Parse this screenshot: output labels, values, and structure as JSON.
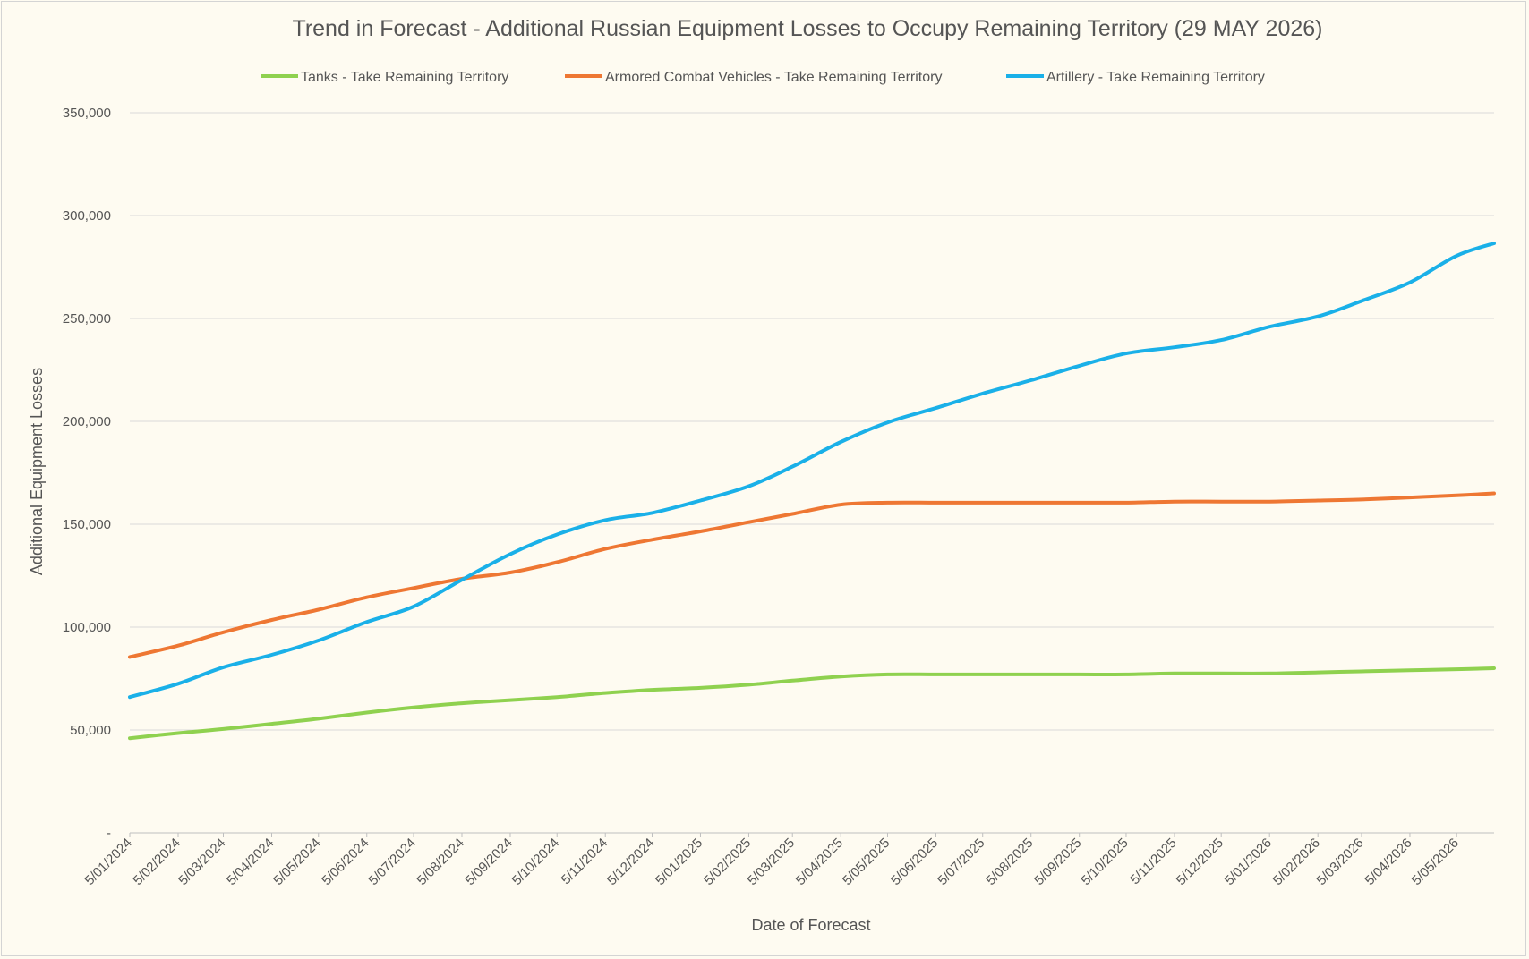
{
  "chart_data": {
    "type": "line",
    "title": "Trend in Forecast - Additional Russian Equipment Losses to Occupy Remaining Territory (29 MAY 2026)",
    "xlabel": "Date of Forecast",
    "ylabel": "Additional Equipment Losses",
    "ylim": [
      0,
      350000
    ],
    "yticks": [
      0,
      50000,
      100000,
      150000,
      200000,
      250000,
      300000,
      350000
    ],
    "ytick_labels": [
      "-",
      "50,000",
      "100,000",
      "150,000",
      "200,000",
      "250,000",
      "300,000",
      "350,000"
    ],
    "x_tick_labels": [
      "5/01/2024",
      "5/02/2024",
      "5/03/2024",
      "5/04/2024",
      "5/05/2024",
      "5/06/2024",
      "5/07/2024",
      "5/08/2024",
      "5/09/2024",
      "5/10/2024",
      "5/11/2024",
      "5/12/2024",
      "5/01/2025",
      "5/02/2025",
      "5/03/2025",
      "5/04/2025",
      "5/05/2025",
      "5/06/2025",
      "5/07/2025",
      "5/08/2025",
      "5/09/2025",
      "5/10/2025",
      "5/11/2025",
      "5/12/2025",
      "5/01/2026",
      "5/02/2026",
      "5/03/2026",
      "5/04/2026",
      "5/05/2026"
    ],
    "x_end": "29/05/2026",
    "grid": true,
    "legend_position": "top",
    "series": [
      {
        "name": "Tanks - Take Remaining Territory",
        "color": "#8fd14f",
        "x": [
          "5/01/2024",
          "5/02/2024",
          "5/03/2024",
          "5/04/2024",
          "5/05/2024",
          "5/06/2024",
          "5/07/2024",
          "5/08/2024",
          "5/09/2024",
          "5/10/2024",
          "5/11/2024",
          "5/12/2024",
          "5/01/2025",
          "5/02/2025",
          "5/03/2025",
          "5/04/2025",
          "5/05/2025",
          "5/06/2025",
          "5/07/2025",
          "5/08/2025",
          "5/09/2025",
          "5/10/2025",
          "5/11/2025",
          "5/12/2025",
          "5/01/2026",
          "5/02/2026",
          "5/03/2026",
          "5/04/2026",
          "5/05/2026",
          "29/05/2026"
        ],
        "values": [
          46000,
          48500,
          50500,
          53000,
          55500,
          58500,
          61000,
          63000,
          64500,
          66000,
          68000,
          69500,
          70500,
          72000,
          74000,
          76000,
          77000,
          77000,
          77000,
          77000,
          77000,
          77000,
          77500,
          77500,
          77500,
          78000,
          78500,
          79000,
          79500,
          80000
        ]
      },
      {
        "name": "Armored Combat Vehicles - Take Remaining Territory",
        "color": "#ee7733",
        "x": [
          "5/01/2024",
          "5/02/2024",
          "5/03/2024",
          "5/04/2024",
          "5/05/2024",
          "5/06/2024",
          "5/07/2024",
          "5/08/2024",
          "5/09/2024",
          "5/10/2024",
          "5/11/2024",
          "5/12/2024",
          "5/01/2025",
          "5/02/2025",
          "5/03/2025",
          "5/04/2025",
          "5/05/2025",
          "5/06/2025",
          "5/07/2025",
          "5/08/2025",
          "5/09/2025",
          "5/10/2025",
          "5/11/2025",
          "5/12/2025",
          "5/01/2026",
          "5/02/2026",
          "5/03/2026",
          "5/04/2026",
          "5/05/2026",
          "29/05/2026"
        ],
        "values": [
          85500,
          91000,
          97500,
          103500,
          108500,
          114500,
          119000,
          123500,
          126500,
          131500,
          138000,
          142500,
          146500,
          151000,
          155000,
          159500,
          160500,
          160500,
          160500,
          160500,
          160500,
          160500,
          161000,
          161000,
          161000,
          161500,
          162000,
          163000,
          164000,
          165000
        ]
      },
      {
        "name": "Artillery - Take Remaining Territory",
        "color": "#1ab0e8",
        "x": [
          "5/01/2024",
          "5/02/2024",
          "5/03/2024",
          "5/04/2024",
          "5/05/2024",
          "5/06/2024",
          "5/07/2024",
          "5/08/2024",
          "5/09/2024",
          "5/10/2024",
          "5/11/2024",
          "5/12/2024",
          "5/01/2025",
          "5/02/2025",
          "5/03/2025",
          "5/04/2025",
          "5/05/2025",
          "5/06/2025",
          "5/07/2025",
          "5/08/2025",
          "5/09/2025",
          "5/10/2025",
          "5/11/2025",
          "5/12/2025",
          "5/01/2026",
          "5/02/2026",
          "5/03/2026",
          "5/04/2026",
          "5/05/2026",
          "29/05/2026"
        ],
        "values": [
          66000,
          72500,
          80500,
          86500,
          93500,
          102500,
          110000,
          123000,
          135500,
          145000,
          152000,
          155500,
          161500,
          168500,
          178000,
          190000,
          199500,
          206500,
          213500,
          220000,
          227000,
          233000,
          236000,
          239500,
          246000,
          251000,
          258500,
          267500,
          280500,
          286500
        ]
      }
    ]
  }
}
